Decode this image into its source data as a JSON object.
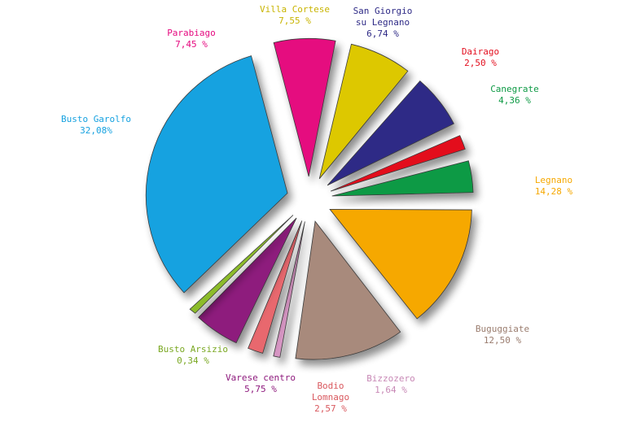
{
  "chart_data": {
    "type": "pie",
    "title": "",
    "slices": [
      {
        "label_lines": [
          "Villa Cortese"
        ],
        "value_text": "7,55 %",
        "value": 7.55,
        "color": "#ddc800",
        "label_color": "#c8b400"
      },
      {
        "label_lines": [
          "San Giorgio",
          "su Legnano"
        ],
        "value_text": "6,74 %",
        "value": 6.74,
        "color": "#2e2a86",
        "label_color": "#2e2a86"
      },
      {
        "label_lines": [
          "Dairago"
        ],
        "value_text": "2,50 %",
        "value": 2.5,
        "color": "#e30f1f",
        "label_color": "#e30f1f"
      },
      {
        "label_lines": [
          "Canegrate"
        ],
        "value_text": "4,36 %",
        "value": 4.36,
        "color": "#0e9a45",
        "label_color": "#0e9a45"
      },
      {
        "label_lines": [
          "Legnano"
        ],
        "value_text": "14,28 %",
        "value": 14.28,
        "color": "#f6a800",
        "label_color": "#f6a800"
      },
      {
        "label_lines": [
          "Buguggiate"
        ],
        "value_text": "12,50 %",
        "value": 12.5,
        "color": "#a88a7c",
        "label_color": "#9a7c6e"
      },
      {
        "label_lines": [
          "Bizzozero"
        ],
        "value_text": "1,64 %",
        "value": 1.64,
        "color": "#d796c4",
        "label_color": "#c889b6"
      },
      {
        "label_lines": [
          "Bodio",
          "Lomnago"
        ],
        "value_text": "2,57 %",
        "value": 2.57,
        "color": "#e8686e",
        "label_color": "#d9585e"
      },
      {
        "label_lines": [
          "Varese centro"
        ],
        "value_text": "5,75 %",
        "value": 5.75,
        "color": "#8e1a7d",
        "label_color": "#8e1a7d"
      },
      {
        "label_lines": [
          "Busto Arsizio"
        ],
        "value_text": "0,34 %",
        "value": 0.34,
        "color": "#8cbc2c",
        "label_color": "#7aa822"
      },
      {
        "label_lines": [
          "Busto Garolfo"
        ],
        "value_text": "32,08%",
        "value": 32.08,
        "color": "#17a2e0",
        "label_color": "#17a2e0"
      },
      {
        "label_lines": [
          "Parabiago"
        ],
        "value_text": "7,45 %",
        "value": 7.45,
        "color": "#e5097f",
        "label_color": "#e5097f"
      }
    ]
  }
}
